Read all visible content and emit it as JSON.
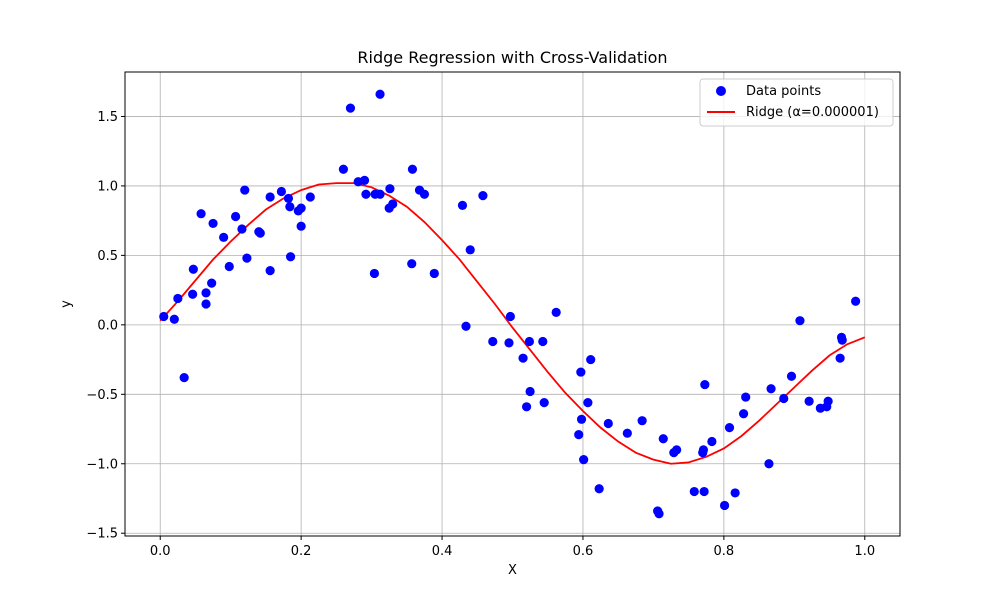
{
  "chart_data": {
    "type": "scatter",
    "title": "Ridge Regression with Cross-Validation",
    "xlabel": "X",
    "ylabel": "y",
    "xlim": [
      -0.05,
      1.05
    ],
    "ylim": [
      -1.52,
      1.82
    ],
    "xticks": [
      0.0,
      0.2,
      0.4,
      0.6,
      0.8,
      1.0
    ],
    "xtick_labels": [
      "0.0",
      "0.2",
      "0.4",
      "0.6",
      "0.8",
      "1.0"
    ],
    "yticks": [
      -1.5,
      -1.0,
      -0.5,
      0.0,
      0.5,
      1.0,
      1.5
    ],
    "ytick_labels": [
      "−1.5",
      "−1.0",
      "−0.5",
      "0.0",
      "0.5",
      "1.0",
      "1.5"
    ],
    "grid": true,
    "legend_position": "top-right",
    "colors": {
      "points": "#0000ff",
      "line": "#ff0000",
      "grid": "#b0b0b0",
      "axes": "#000000"
    },
    "series": [
      {
        "name": "Data points",
        "kind": "scatter",
        "points": [
          [
            0.005,
            0.06
          ],
          [
            0.02,
            0.04
          ],
          [
            0.025,
            0.19
          ],
          [
            0.034,
            -0.38
          ],
          [
            0.046,
            0.22
          ],
          [
            0.047,
            0.4
          ],
          [
            0.058,
            0.8
          ],
          [
            0.065,
            0.23
          ],
          [
            0.065,
            0.15
          ],
          [
            0.073,
            0.3
          ],
          [
            0.075,
            0.73
          ],
          [
            0.09,
            0.63
          ],
          [
            0.098,
            0.42
          ],
          [
            0.107,
            0.78
          ],
          [
            0.116,
            0.69
          ],
          [
            0.12,
            0.97
          ],
          [
            0.123,
            0.48
          ],
          [
            0.14,
            0.67
          ],
          [
            0.142,
            0.66
          ],
          [
            0.156,
            0.39
          ],
          [
            0.156,
            0.92
          ],
          [
            0.172,
            0.96
          ],
          [
            0.182,
            0.91
          ],
          [
            0.184,
            0.85
          ],
          [
            0.185,
            0.49
          ],
          [
            0.196,
            0.82
          ],
          [
            0.2,
            0.84
          ],
          [
            0.2,
            0.71
          ],
          [
            0.213,
            0.92
          ],
          [
            0.26,
            1.12
          ],
          [
            0.27,
            1.56
          ],
          [
            0.281,
            1.03
          ],
          [
            0.29,
            1.04
          ],
          [
            0.292,
            0.94
          ],
          [
            0.304,
            0.37
          ],
          [
            0.305,
            0.94
          ],
          [
            0.312,
            1.66
          ],
          [
            0.312,
            0.94
          ],
          [
            0.325,
            0.84
          ],
          [
            0.326,
            0.98
          ],
          [
            0.33,
            0.87
          ],
          [
            0.357,
            0.44
          ],
          [
            0.358,
            1.12
          ],
          [
            0.368,
            0.97
          ],
          [
            0.375,
            0.94
          ],
          [
            0.389,
            0.37
          ],
          [
            0.429,
            0.86
          ],
          [
            0.434,
            -0.01
          ],
          [
            0.44,
            0.54
          ],
          [
            0.458,
            0.93
          ],
          [
            0.472,
            -0.12
          ],
          [
            0.495,
            -0.13
          ],
          [
            0.497,
            0.06
          ],
          [
            0.515,
            -0.24
          ],
          [
            0.52,
            -0.59
          ],
          [
            0.524,
            -0.12
          ],
          [
            0.525,
            -0.48
          ],
          [
            0.543,
            -0.12
          ],
          [
            0.545,
            -0.56
          ],
          [
            0.562,
            0.09
          ],
          [
            0.594,
            -0.79
          ],
          [
            0.597,
            -0.34
          ],
          [
            0.598,
            -0.68
          ],
          [
            0.601,
            -0.97
          ],
          [
            0.607,
            -0.56
          ],
          [
            0.611,
            -0.25
          ],
          [
            0.623,
            -1.18
          ],
          [
            0.636,
            -0.71
          ],
          [
            0.663,
            -0.78
          ],
          [
            0.684,
            -0.69
          ],
          [
            0.706,
            -1.34
          ],
          [
            0.708,
            -1.36
          ],
          [
            0.714,
            -0.82
          ],
          [
            0.729,
            -0.92
          ],
          [
            0.733,
            -0.9
          ],
          [
            0.758,
            -1.2
          ],
          [
            0.77,
            -0.92
          ],
          [
            0.771,
            -0.9
          ],
          [
            0.772,
            -1.2
          ],
          [
            0.773,
            -0.43
          ],
          [
            0.783,
            -0.84
          ],
          [
            0.801,
            -1.3
          ],
          [
            0.808,
            -0.74
          ],
          [
            0.816,
            -1.21
          ],
          [
            0.828,
            -0.64
          ],
          [
            0.831,
            -0.52
          ],
          [
            0.864,
            -1.0
          ],
          [
            0.867,
            -0.46
          ],
          [
            0.885,
            -0.53
          ],
          [
            0.896,
            -0.37
          ],
          [
            0.908,
            0.03
          ],
          [
            0.921,
            -0.55
          ],
          [
            0.937,
            -0.6
          ],
          [
            0.946,
            -0.59
          ],
          [
            0.948,
            -0.55
          ],
          [
            0.965,
            -0.24
          ],
          [
            0.967,
            -0.09
          ],
          [
            0.968,
            -0.11
          ],
          [
            0.987,
            0.17
          ]
        ]
      },
      {
        "name": "Ridge (α=0.000001)",
        "kind": "line",
        "points": [
          [
            0.0,
            0.03
          ],
          [
            0.025,
            0.17
          ],
          [
            0.05,
            0.32
          ],
          [
            0.075,
            0.47
          ],
          [
            0.1,
            0.6
          ],
          [
            0.125,
            0.72
          ],
          [
            0.15,
            0.83
          ],
          [
            0.175,
            0.91
          ],
          [
            0.2,
            0.97
          ],
          [
            0.225,
            1.01
          ],
          [
            0.25,
            1.02
          ],
          [
            0.275,
            1.02
          ],
          [
            0.3,
            0.99
          ],
          [
            0.325,
            0.93
          ],
          [
            0.35,
            0.85
          ],
          [
            0.375,
            0.74
          ],
          [
            0.4,
            0.61
          ],
          [
            0.425,
            0.47
          ],
          [
            0.45,
            0.31
          ],
          [
            0.475,
            0.15
          ],
          [
            0.5,
            -0.02
          ],
          [
            0.525,
            -0.18
          ],
          [
            0.55,
            -0.34
          ],
          [
            0.575,
            -0.49
          ],
          [
            0.6,
            -0.62
          ],
          [
            0.625,
            -0.74
          ],
          [
            0.65,
            -0.84
          ],
          [
            0.675,
            -0.92
          ],
          [
            0.7,
            -0.97
          ],
          [
            0.725,
            -1.0
          ],
          [
            0.75,
            -0.99
          ],
          [
            0.775,
            -0.95
          ],
          [
            0.8,
            -0.89
          ],
          [
            0.825,
            -0.8
          ],
          [
            0.85,
            -0.69
          ],
          [
            0.875,
            -0.57
          ],
          [
            0.9,
            -0.45
          ],
          [
            0.925,
            -0.33
          ],
          [
            0.95,
            -0.22
          ],
          [
            0.975,
            -0.14
          ],
          [
            1.0,
            -0.09
          ]
        ]
      }
    ]
  }
}
